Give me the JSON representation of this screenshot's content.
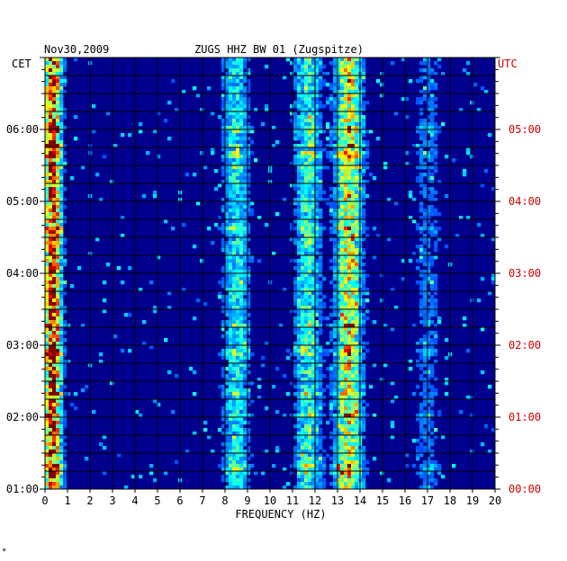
{
  "chart_data": {
    "type": "heatmap",
    "header_left": "Nov30,2009",
    "title": "ZUGS HHZ BW 01 (Zugspitze)",
    "left_axis_label": "CET",
    "right_axis_label": "UTC",
    "xlabel": "FREQUENCY (HZ)",
    "x_ticks": [
      "0",
      "1",
      "2",
      "3",
      "4",
      "5",
      "6",
      "7",
      "8",
      "9",
      "10",
      "11",
      "12",
      "13",
      "14",
      "15",
      "16",
      "17",
      "18",
      "19",
      "20"
    ],
    "xlim": [
      0,
      20
    ],
    "time_range_hours": [
      1,
      7
    ],
    "left_ticks": [
      {
        "label": "06:00",
        "hours": 6
      },
      {
        "label": "05:00",
        "hours": 5
      },
      {
        "label": "04:00",
        "hours": 4
      },
      {
        "label": "03:00",
        "hours": 3
      },
      {
        "label": "02:00",
        "hours": 2
      },
      {
        "label": "01:00",
        "hours": 1
      }
    ],
    "right_ticks": [
      {
        "label": "05:00",
        "hours": 6
      },
      {
        "label": "04:00",
        "hours": 5
      },
      {
        "label": "03:00",
        "hours": 4
      },
      {
        "label": "02:00",
        "hours": 3
      },
      {
        "label": "01:00",
        "hours": 2
      },
      {
        "label": "00:00",
        "hours": 1
      }
    ],
    "energy_bands_hz": [
      {
        "center": 0.35,
        "strength": 0.85
      },
      {
        "center": 8.5,
        "strength": 0.28
      },
      {
        "center": 11.7,
        "strength": 0.32
      },
      {
        "center": 13.5,
        "strength": 0.55
      },
      {
        "center": 17.0,
        "strength": 0.12
      }
    ],
    "colors": {
      "background": "#00008f",
      "grid": "#000000",
      "left_labels": "#000000",
      "right_labels": "#cc0000"
    },
    "corner_mark": "*"
  }
}
